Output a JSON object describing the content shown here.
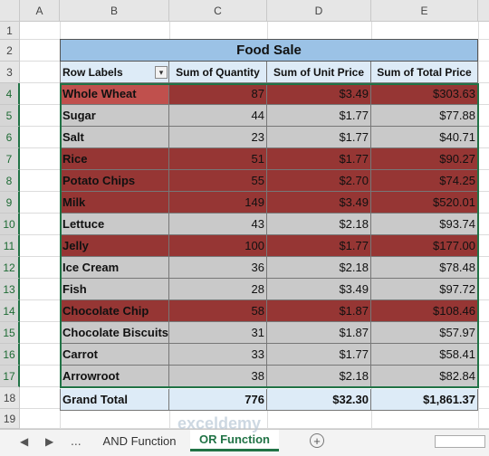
{
  "columns": [
    "A",
    "B",
    "C",
    "D",
    "E"
  ],
  "rows": [
    "1",
    "2",
    "3",
    "4",
    "5",
    "6",
    "7",
    "8",
    "9",
    "10",
    "11",
    "12",
    "13",
    "14",
    "15",
    "16",
    "17",
    "18",
    "19"
  ],
  "pivot": {
    "title": "Food Sale",
    "headers": [
      "Row Labels",
      "Sum of Quantity",
      "Sum of Unit Price",
      "Sum of Total Price"
    ],
    "filter_icon": "filter-dropdown-icon",
    "items": [
      {
        "label": "Whole Wheat",
        "qty": "87",
        "unit": "$3.49",
        "total": "$303.63",
        "style": "highlight-active"
      },
      {
        "label": "Sugar",
        "qty": "44",
        "unit": "$1.77",
        "total": "$77.88",
        "style": "gray"
      },
      {
        "label": "Salt",
        "qty": "23",
        "unit": "$1.77",
        "total": "$40.71",
        "style": "gray"
      },
      {
        "label": "Rice",
        "qty": "51",
        "unit": "$1.77",
        "total": "$90.27",
        "style": "red"
      },
      {
        "label": "Potato Chips",
        "qty": "55",
        "unit": "$2.70",
        "total": "$74.25",
        "style": "red"
      },
      {
        "label": "Milk",
        "qty": "149",
        "unit": "$3.49",
        "total": "$520.01",
        "style": "red"
      },
      {
        "label": "Lettuce",
        "qty": "43",
        "unit": "$2.18",
        "total": "$93.74",
        "style": "gray"
      },
      {
        "label": "Jelly",
        "qty": "100",
        "unit": "$1.77",
        "total": "$177.00",
        "style": "red"
      },
      {
        "label": "Ice Cream",
        "qty": "36",
        "unit": "$2.18",
        "total": "$78.48",
        "style": "gray"
      },
      {
        "label": "Fish",
        "qty": "28",
        "unit": "$3.49",
        "total": "$97.72",
        "style": "gray"
      },
      {
        "label": "Chocolate Chip",
        "qty": "58",
        "unit": "$1.87",
        "total": "$108.46",
        "style": "red"
      },
      {
        "label": "Chocolate Biscuits",
        "qty": "31",
        "unit": "$1.87",
        "total": "$57.97",
        "style": "gray"
      },
      {
        "label": "Carrot",
        "qty": "33",
        "unit": "$1.77",
        "total": "$58.41",
        "style": "gray"
      },
      {
        "label": "Arrowroot",
        "qty": "38",
        "unit": "$2.18",
        "total": "$82.84",
        "style": "gray"
      }
    ],
    "grand_total": {
      "label": "Grand Total",
      "qty": "776",
      "unit": "$32.30",
      "total": "$1,861.37"
    }
  },
  "colors": {
    "header_blue": "#9bc2e6",
    "light_blue": "#ddebf7",
    "gray_fill": "#c9c9c9",
    "red_fill": "#963634",
    "active_red": "#c0504d",
    "excel_green": "#217346"
  },
  "tabs": {
    "prev": "◀",
    "next": "▶",
    "more": "...",
    "items": [
      "AND Function",
      "OR Function"
    ],
    "active": "OR Function",
    "add": "+"
  },
  "watermark": "exceldemy"
}
